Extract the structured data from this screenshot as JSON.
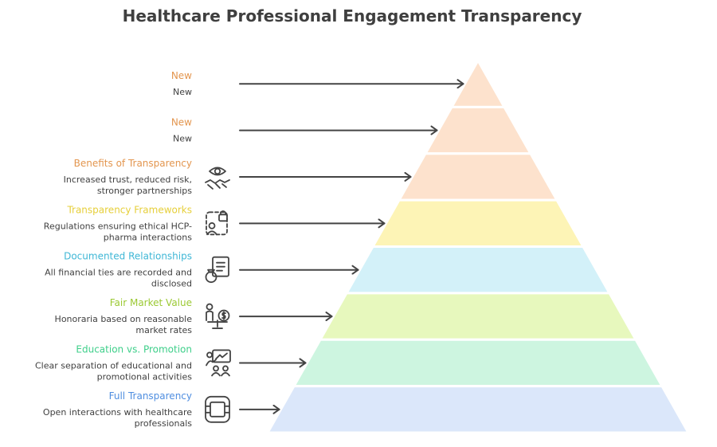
{
  "title": "Healthcare Professional Engagement Transparency",
  "colors": {
    "text": "#3f3f3f",
    "arrow": "#444444",
    "icon": "#444444"
  },
  "levels": [
    {
      "title": "New",
      "desc_lines": [
        "New"
      ],
      "title_color": "#e3964f",
      "fill": "#fde2cd",
      "icon": null
    },
    {
      "title": "New",
      "desc_lines": [
        "New"
      ],
      "title_color": "#e3964f",
      "fill": "#fde2cd",
      "icon": null
    },
    {
      "title": "Benefits of Transparency",
      "desc_lines": [
        "Increased trust, reduced risk,",
        "stronger partnerships"
      ],
      "title_color": "#e3964f",
      "fill": "#fde2cd",
      "icon": "handshake-eye-icon"
    },
    {
      "title": "Transparency Frameworks",
      "desc_lines": [
        "Regulations ensuring ethical HCP-",
        "pharma interactions"
      ],
      "title_color": "#e6cf3a",
      "fill": "#fdf4b6",
      "icon": "user-lock-icon"
    },
    {
      "title": "Documented Relationships",
      "desc_lines": [
        "All financial ties are recorded and",
        "disclosed"
      ],
      "title_color": "#3fb7d6",
      "fill": "#d3f1f9",
      "icon": "document-money-icon"
    },
    {
      "title": "Fair Market Value",
      "desc_lines": [
        "Honoraria based on reasonable",
        "market rates"
      ],
      "title_color": "#9bc933",
      "fill": "#e7f8bd",
      "icon": "person-scale-icon"
    },
    {
      "title": "Education vs. Promotion",
      "desc_lines": [
        "Clear separation of educational and",
        "promotional activities"
      ],
      "title_color": "#3ecf8a",
      "fill": "#cdf5e0",
      "icon": "presentation-icon"
    },
    {
      "title": "Full Transparency",
      "desc_lines": [
        "Open interactions with healthcare",
        "professionals"
      ],
      "title_color": "#4f8ee0",
      "fill": "#dbe7fa",
      "icon": "window-icon"
    }
  ]
}
